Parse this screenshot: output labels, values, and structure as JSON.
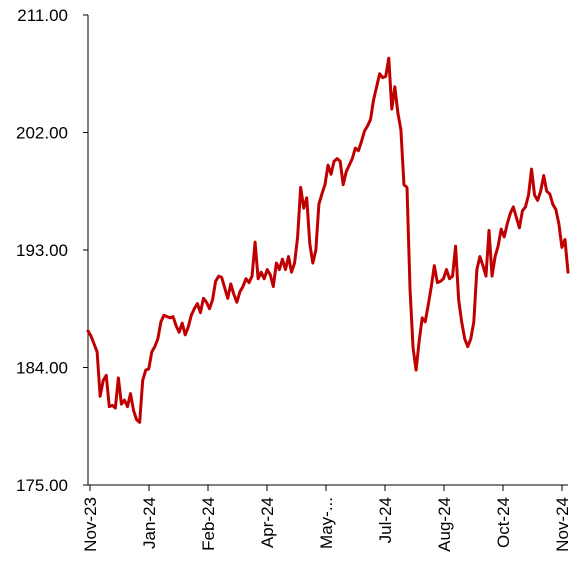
{
  "chart_data": {
    "type": "line",
    "title": "",
    "xlabel": "",
    "ylabel": "",
    "ylim": [
      175,
      211
    ],
    "yticks": [
      "175.00",
      "184.00",
      "193.00",
      "202.00",
      "211.00"
    ],
    "ytick_values": [
      175,
      184,
      193,
      202,
      211
    ],
    "xticks": [
      "Nov-23",
      "Jan-24",
      "Feb-24",
      "Apr-24",
      "May-...",
      "Jul-24",
      "Aug-24",
      "Oct-24",
      "Nov-24"
    ],
    "grid": false,
    "legend": "none",
    "line_color": "#C00000",
    "series": [
      {
        "values": [
          186.8,
          186.4,
          185.8,
          185.2,
          181.8,
          183.0,
          183.4,
          181.0,
          181.1,
          180.9,
          183.2,
          181.2,
          181.5,
          181.0,
          182.0,
          180.7,
          180.0,
          179.8,
          183.0,
          183.8,
          183.9,
          185.2,
          185.6,
          186.2,
          187.5,
          188.0,
          187.9,
          187.8,
          187.9,
          187.2,
          186.7,
          187.4,
          186.5,
          187.1,
          188.0,
          188.5,
          188.9,
          188.2,
          189.3,
          189.0,
          188.5,
          189.2,
          190.6,
          191.0,
          190.9,
          190.1,
          189.3,
          190.4,
          189.6,
          189.0,
          189.8,
          190.2,
          190.8,
          190.5,
          191.0,
          193.6,
          190.8,
          191.3,
          190.8,
          191.5,
          191.1,
          190.2,
          192.0,
          191.5,
          192.3,
          191.5,
          192.5,
          191.3,
          192.0,
          194.0,
          197.8,
          196.2,
          197.0,
          193.5,
          192.0,
          193.0,
          196.5,
          197.3,
          198.0,
          199.5,
          198.8,
          199.8,
          200.0,
          199.8,
          198.0,
          199.0,
          199.5,
          200.0,
          200.8,
          200.6,
          201.3,
          202.1,
          202.5,
          203.0,
          204.5,
          205.5,
          206.5,
          206.2,
          206.3,
          207.7,
          203.8,
          205.5,
          203.5,
          202.2,
          198.0,
          197.8,
          190.0,
          185.5,
          183.8,
          186.0,
          187.8,
          187.5,
          188.8,
          190.2,
          191.8,
          190.5,
          190.6,
          190.8,
          191.5,
          190.8,
          191.0,
          193.3,
          189.2,
          187.5,
          186.2,
          185.6,
          186.2,
          187.5,
          191.5,
          192.5,
          191.8,
          191.0,
          194.5,
          191.0,
          192.5,
          193.3,
          194.6,
          194.0,
          195.0,
          195.8,
          196.3,
          195.5,
          194.7,
          196.0,
          196.3,
          197.2,
          199.2,
          197.2,
          196.8,
          197.5,
          198.7,
          197.5,
          197.3,
          196.5,
          196.1,
          195.0,
          193.2,
          193.8,
          191.3
        ]
      }
    ]
  }
}
